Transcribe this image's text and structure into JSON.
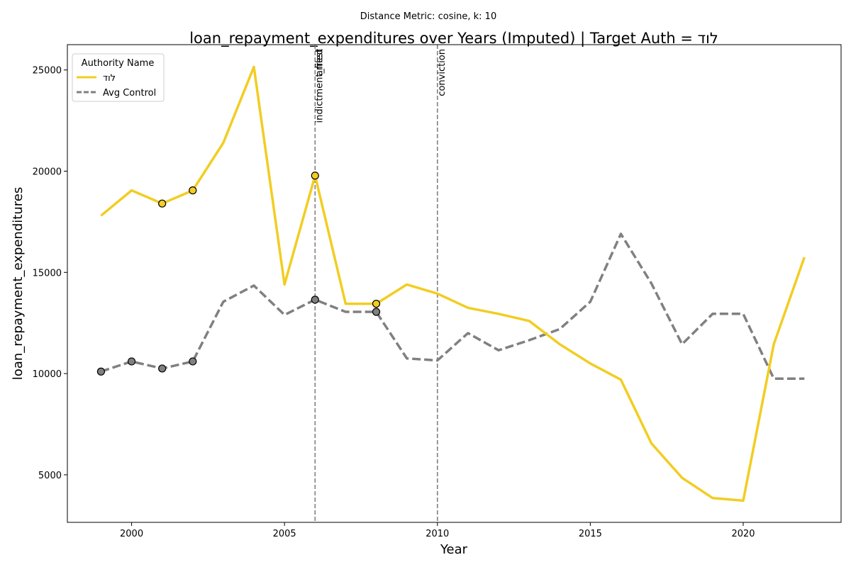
{
  "chart_data": {
    "type": "line",
    "suptitle": "Distance Metric: cosine, k: 10",
    "title": "loan_repayment_expenditures over Years (Imputed) | Target Auth = לוד",
    "xlabel": "Year",
    "ylabel": "loan_repayment_expenditures",
    "xlim": [
      1997.9,
      2023.2
    ],
    "ylim": [
      2650,
      26250
    ],
    "xticks": [
      2000,
      2005,
      2010,
      2015,
      2020
    ],
    "yticks": [
      5000,
      10000,
      15000,
      20000,
      25000
    ],
    "legend": {
      "title": "Authority Name",
      "position": "top-left"
    },
    "events": [
      {
        "label": "indictment_filed",
        "x": 2006
      },
      {
        "label": "arrest",
        "x": 2006
      },
      {
        "label": "conviction",
        "x": 2010
      }
    ],
    "series": [
      {
        "name": "לוד",
        "color": "#f2cd22",
        "style": "solid",
        "x": [
          1999,
          2000,
          2001,
          2002,
          2003,
          2004,
          2005,
          2006,
          2007,
          2008,
          2009,
          2010,
          2011,
          2012,
          2013,
          2014,
          2015,
          2016,
          2017,
          2018,
          2019,
          2020,
          2021,
          2022
        ],
        "y": [
          17800,
          19050,
          18400,
          19050,
          21400,
          25150,
          14400,
          19780,
          13450,
          13450,
          14400,
          13950,
          13250,
          12950,
          12600,
          11450,
          10500,
          9700,
          6550,
          4850,
          3850,
          3720,
          11450,
          15750
        ],
        "markers_x": [
          2001,
          2002,
          2006,
          2008
        ]
      },
      {
        "name": "Avg Control",
        "color": "#808080",
        "style": "dashed",
        "x": [
          1999,
          2000,
          2001,
          2002,
          2003,
          2004,
          2005,
          2006,
          2007,
          2008,
          2009,
          2010,
          2011,
          2012,
          2013,
          2014,
          2015,
          2016,
          2017,
          2018,
          2019,
          2020,
          2021,
          2022
        ],
        "y": [
          10100,
          10600,
          10250,
          10600,
          13550,
          14350,
          12900,
          13650,
          13050,
          13050,
          10750,
          10650,
          12000,
          11150,
          11650,
          12200,
          13550,
          16900,
          14450,
          11450,
          12950,
          12950,
          9750,
          9750
        ],
        "markers_x": [
          1999,
          2000,
          2001,
          2002,
          2006,
          2008
        ]
      }
    ]
  }
}
